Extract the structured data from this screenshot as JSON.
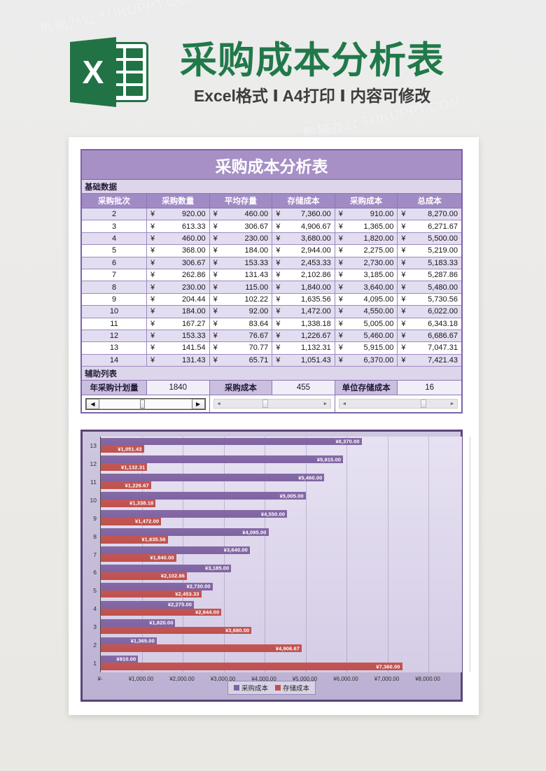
{
  "watermark": "熊猫办公 TUKUPPT.COM",
  "banner": {
    "icon_letter": "X",
    "title": "采购成本分析表",
    "subtitle": "Excel格式 Ⅰ A4打印 Ⅰ 内容可修改",
    "brand_green": "#217346"
  },
  "sheet": {
    "title": "采购成本分析表",
    "section1_label": "基础数据",
    "section2_label": "辅助列表",
    "currency": "¥",
    "columns": [
      "采购批次",
      "采购数量",
      "平均存量",
      "存储成本",
      "采购成本",
      "总成本"
    ],
    "rows": [
      [
        "2",
        "920.00",
        "460.00",
        "7,360.00",
        "910.00",
        "8,270.00"
      ],
      [
        "3",
        "613.33",
        "306.67",
        "4,906.67",
        "1,365.00",
        "6,271.67"
      ],
      [
        "4",
        "460.00",
        "230.00",
        "3,680.00",
        "1,820.00",
        "5,500.00"
      ],
      [
        "5",
        "368.00",
        "184.00",
        "2,944.00",
        "2,275.00",
        "5,219.00"
      ],
      [
        "6",
        "306.67",
        "153.33",
        "2,453.33",
        "2,730.00",
        "5,183.33"
      ],
      [
        "7",
        "262.86",
        "131.43",
        "2,102.86",
        "3,185.00",
        "5,287.86"
      ],
      [
        "8",
        "230.00",
        "115.00",
        "1,840.00",
        "3,640.00",
        "5,480.00"
      ],
      [
        "9",
        "204.44",
        "102.22",
        "1,635.56",
        "4,095.00",
        "5,730.56"
      ],
      [
        "10",
        "184.00",
        "92.00",
        "1,472.00",
        "4,550.00",
        "6,022.00"
      ],
      [
        "11",
        "167.27",
        "83.64",
        "1,338.18",
        "5,005.00",
        "6,343.18"
      ],
      [
        "12",
        "153.33",
        "76.67",
        "1,226.67",
        "5,460.00",
        "6,686.67"
      ],
      [
        "13",
        "141.54",
        "70.77",
        "1,132.31",
        "5,915.00",
        "7,047.31"
      ],
      [
        "14",
        "131.43",
        "65.71",
        "1,051.43",
        "6,370.00",
        "7,421.43"
      ]
    ],
    "aux": [
      {
        "label": "年采购计划量",
        "value": "1840"
      },
      {
        "label": "采购成本",
        "value": "455"
      },
      {
        "label": "单位存储成本",
        "value": "16"
      }
    ]
  },
  "chart_data": {
    "type": "bar",
    "orientation": "horizontal",
    "categories": [
      "1",
      "2",
      "3",
      "4",
      "5",
      "6",
      "7",
      "8",
      "9",
      "10",
      "11",
      "12",
      "13"
    ],
    "series": [
      {
        "name": "采购成本",
        "color": "#8064a2",
        "values": [
          910,
          1365,
          1820,
          2275,
          2730,
          3185,
          3640,
          4095,
          4550,
          5005,
          5460,
          5915,
          6370
        ],
        "labels": [
          "¥910.00",
          "¥1,365.00",
          "¥1,820.00",
          "¥2,275.00",
          "¥2,730.00",
          "¥3,185.00",
          "¥3,640.00",
          "¥4,095.00",
          "¥4,550.00",
          "¥5,005.00",
          "¥5,460.00",
          "¥5,915.00",
          "¥6,370.00"
        ]
      },
      {
        "name": "存储成本",
        "color": "#c0504d",
        "values": [
          7360,
          4906.67,
          3680,
          2944,
          2453.33,
          2102.86,
          1840,
          1635.56,
          1472,
          1338.18,
          1226.67,
          1132.31,
          1051.43
        ],
        "labels": [
          "¥7,360.00",
          "¥4,906.67",
          "¥3,680.00",
          "¥2,944.00",
          "¥2,453.33",
          "¥2,102.86",
          "¥1,840.00",
          "¥1,635.56",
          "¥1,472.00",
          "¥1,338.18",
          "¥1,226.67",
          "¥1,132.31",
          "¥1,051.43"
        ]
      }
    ],
    "xlim": [
      0,
      8000
    ],
    "x_tick_step": 1000,
    "x_ticks": [
      "¥-",
      "¥1,000.00",
      "¥2,000.00",
      "¥3,000.00",
      "¥4,000.00",
      "¥5,000.00",
      "¥6,000.00",
      "¥7,000.00",
      "¥8,000.00"
    ],
    "grid": true,
    "legend": [
      "采购成本",
      "存储成本"
    ],
    "legend_position": "bottom",
    "value_label_position": "inside-end"
  }
}
